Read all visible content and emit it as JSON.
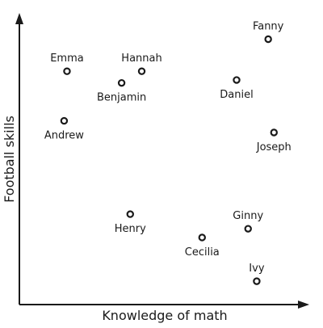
{
  "chart_data": {
    "type": "scatter",
    "title": "",
    "xlabel": "Knowledge of math",
    "ylabel": "Football skills",
    "xlim": [
      0,
      100
    ],
    "ylim": [
      0,
      100
    ],
    "ticks": false,
    "grid": false,
    "legend": "none",
    "points": [
      {
        "name": "Emma",
        "x": 16,
        "y": 80,
        "label_pos": "above"
      },
      {
        "name": "Hannah",
        "x": 42,
        "y": 80,
        "label_pos": "above"
      },
      {
        "name": "Benjamin",
        "x": 35,
        "y": 76,
        "label_pos": "below"
      },
      {
        "name": "Andrew",
        "x": 15,
        "y": 63,
        "label_pos": "below"
      },
      {
        "name": "Fanny",
        "x": 86,
        "y": 91,
        "label_pos": "above"
      },
      {
        "name": "Daniel",
        "x": 75,
        "y": 77,
        "label_pos": "below"
      },
      {
        "name": "Joseph",
        "x": 88,
        "y": 59,
        "label_pos": "below"
      },
      {
        "name": "Henry",
        "x": 38,
        "y": 31,
        "label_pos": "below"
      },
      {
        "name": "Ginny",
        "x": 79,
        "y": 26,
        "label_pos": "above"
      },
      {
        "name": "Cecilia",
        "x": 63,
        "y": 23,
        "label_pos": "below"
      },
      {
        "name": "Ivy",
        "x": 82,
        "y": 8,
        "label_pos": "above"
      }
    ]
  }
}
